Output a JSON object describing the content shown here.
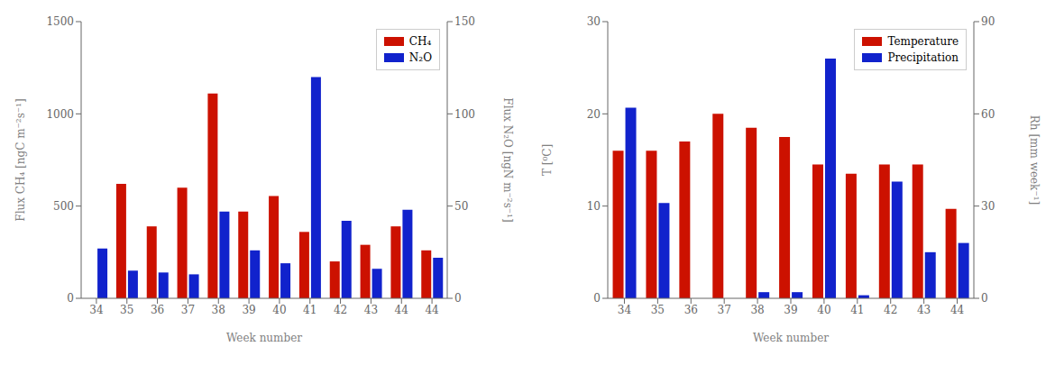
{
  "chart_data": [
    {
      "type": "bar",
      "categories": [
        "34",
        "35",
        "36",
        "37",
        "38",
        "39",
        "40",
        "41",
        "42",
        "43",
        "44",
        "44"
      ],
      "series": [
        {
          "name": "CH₄",
          "color": "#cc1100",
          "values": [
            0,
            620,
            390,
            600,
            1110,
            470,
            555,
            360,
            200,
            290,
            390,
            260
          ]
        },
        {
          "name": "N₂O",
          "color": "#1122cc",
          "axis": "y2",
          "values": [
            27,
            15,
            14,
            13,
            47,
            26,
            19,
            120,
            42,
            16,
            48,
            22
          ]
        }
      ],
      "xlabel": "Week number",
      "ylabel": "Flux CH₄ [ngC m⁻²s⁻¹]",
      "y2label": "Flux N₂O [ngN m⁻²s⁻¹]",
      "ylim": [
        0,
        1500
      ],
      "yticks": [
        0,
        500,
        1000,
        1500
      ],
      "y2lim": [
        0,
        150
      ],
      "y2ticks": [
        0,
        50,
        100,
        150
      ],
      "legend": "upper right"
    },
    {
      "type": "bar",
      "categories": [
        "34",
        "35",
        "36",
        "37",
        "38",
        "39",
        "40",
        "41",
        "42",
        "43",
        "44"
      ],
      "series": [
        {
          "name": "Temperature",
          "color": "#cc1100",
          "values": [
            16.0,
            16.0,
            17.0,
            20.0,
            18.5,
            17.5,
            14.5,
            13.5,
            14.5,
            14.5,
            9.7
          ]
        },
        {
          "name": "Precipitation",
          "color": "#1122cc",
          "axis": "y2",
          "values": [
            62,
            31,
            0,
            0,
            2,
            2,
            78,
            1,
            38,
            15,
            18
          ]
        }
      ],
      "xlabel": "Week number",
      "ylabel": "T [⁰C]",
      "y2label": "Rh [mm week⁻¹]",
      "ylim": [
        0,
        30
      ],
      "yticks": [
        0,
        10,
        20,
        30
      ],
      "y2lim": [
        0,
        90
      ],
      "y2ticks": [
        0,
        30,
        60,
        90
      ],
      "legend": "upper right"
    }
  ]
}
